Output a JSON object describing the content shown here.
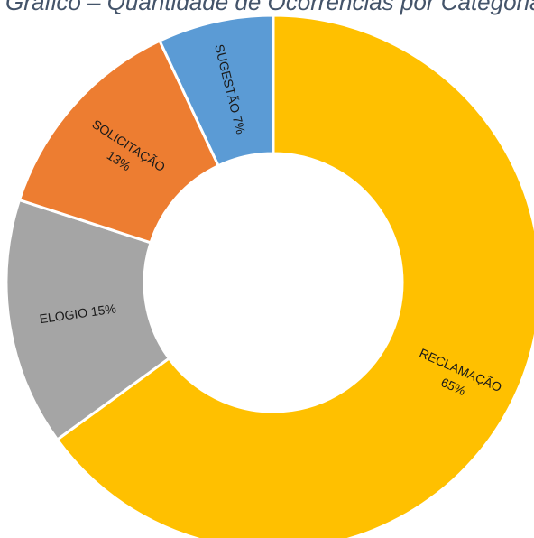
{
  "title": "Gráfico – Quantidade de Ocorrências por Categoria",
  "chart_data": {
    "type": "pie",
    "style": "donut",
    "slices": [
      {
        "label": "RECLAMAÇÃO",
        "pct_label": "65%",
        "value": 65,
        "color": "#ffc000"
      },
      {
        "label": "ELOGIO",
        "pct_label": "15%",
        "value": 15,
        "color": "#a5a5a5"
      },
      {
        "label": "SOLICITAÇÃO",
        "pct_label": "13%",
        "value": 13,
        "color": "#ed7d31"
      },
      {
        "label": "SUGESTÃO",
        "pct_label": "7%",
        "value": 7,
        "color": "#5b9bd5"
      }
    ]
  }
}
